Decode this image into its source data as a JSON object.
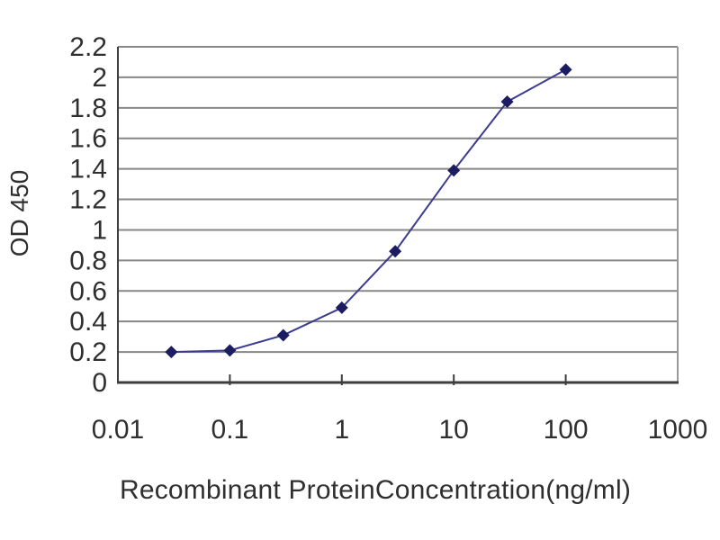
{
  "chart_data": {
    "type": "line",
    "x_scale": "log",
    "x": [
      0.03,
      0.1,
      0.3,
      1,
      3,
      10,
      30,
      100
    ],
    "y": [
      0.2,
      0.21,
      0.31,
      0.49,
      0.86,
      1.39,
      1.84,
      2.05
    ],
    "xlabel": "Recombinant ProteinConcentration(ng/ml)",
    "ylabel": "OD 450",
    "xlim": [
      0.01,
      1000
    ],
    "ylim": [
      0,
      2.2
    ],
    "x_ticks": [
      0.01,
      0.1,
      1,
      10,
      100,
      1000
    ],
    "x_tick_labels": [
      "0.01",
      "0.1",
      "1",
      "10",
      "100",
      "1000"
    ],
    "y_ticks": [
      0,
      0.2,
      0.4,
      0.6,
      0.8,
      1,
      1.2,
      1.4,
      1.6,
      1.8,
      2,
      2.2
    ],
    "y_tick_labels": [
      "0",
      "0.2",
      "0.4",
      "0.6",
      "0.8",
      "1",
      "1.2",
      "1.4",
      "1.6",
      "1.8",
      "2",
      "2.2"
    ],
    "grid": "horizontal",
    "legend": "none",
    "marker": "diamond",
    "colors": {
      "line": "#3b3b8f",
      "marker": "#1c1c62",
      "grid": "#878787",
      "frame": "#9a9a9a",
      "axis": "#3d3d3d",
      "text": "#2f2f2f",
      "background": "#ffffff"
    }
  }
}
